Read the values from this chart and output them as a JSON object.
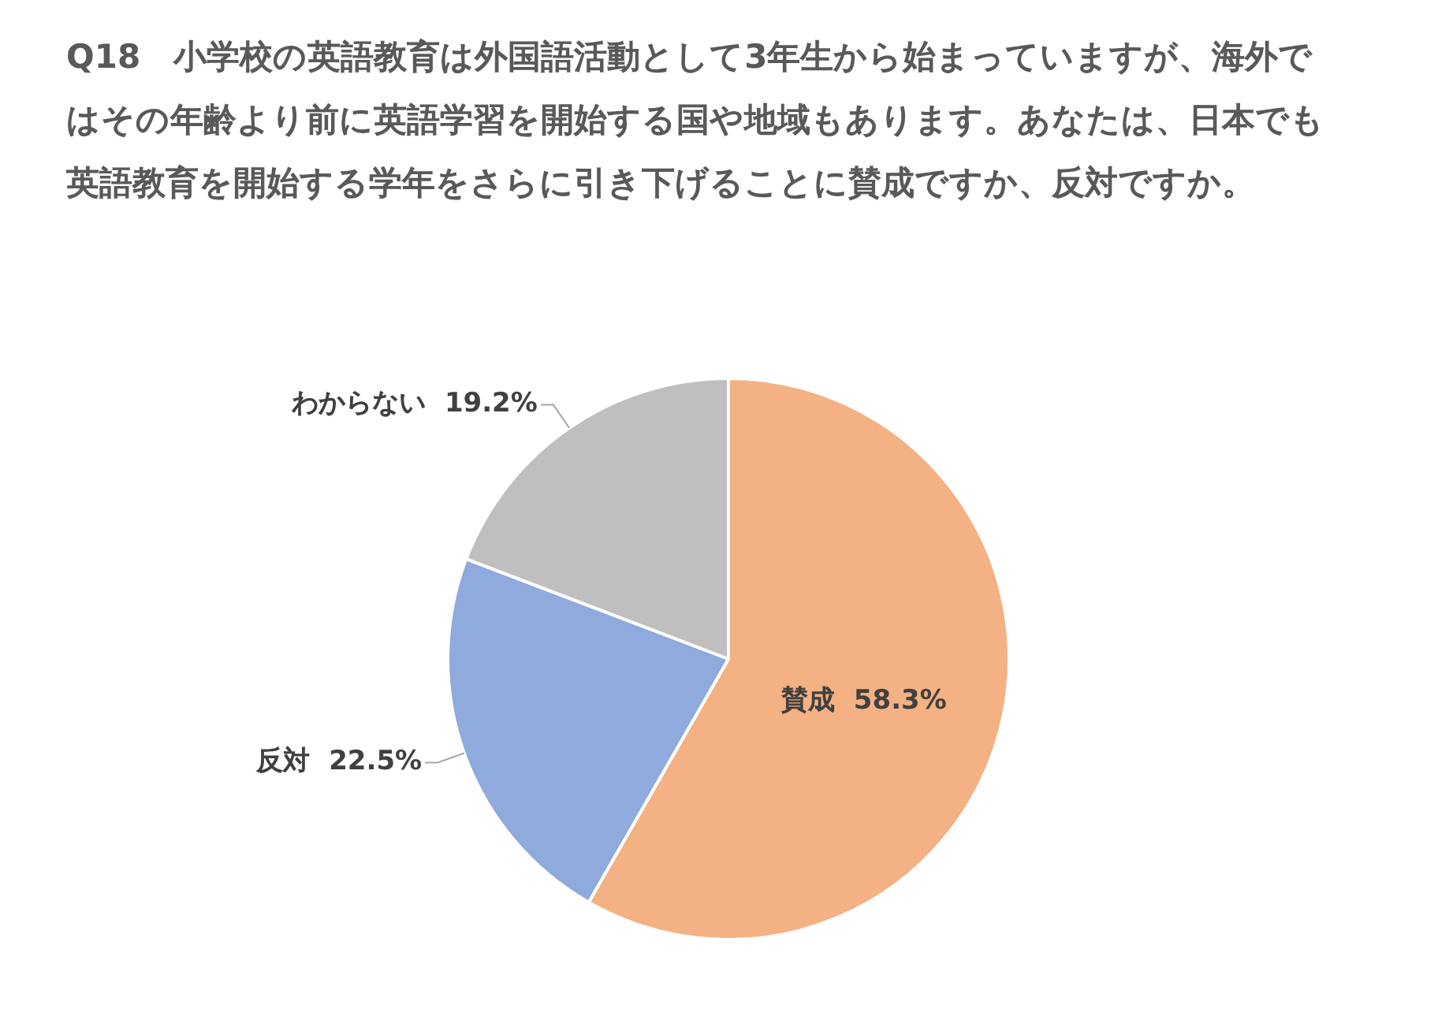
{
  "chart_data": {
    "type": "pie",
    "title": "Q18　小学校の英語教育は外国語活動として3年生から始まっていますが、海外ではその年齢より前に英語学習を開始する国や地域もあります。あなたは、日本でも英語教育を開始する学年をさらに引き下げることに賛成ですか、反対ですか。",
    "categories": [
      "賛成",
      "反対",
      "わからない"
    ],
    "values": [
      58.3,
      22.5,
      19.2
    ],
    "colors": [
      "#f4b183",
      "#8faadc",
      "#bfbfbf"
    ],
    "value_labels": [
      "58.3%",
      "22.5%",
      "19.2%"
    ],
    "legend": false
  }
}
